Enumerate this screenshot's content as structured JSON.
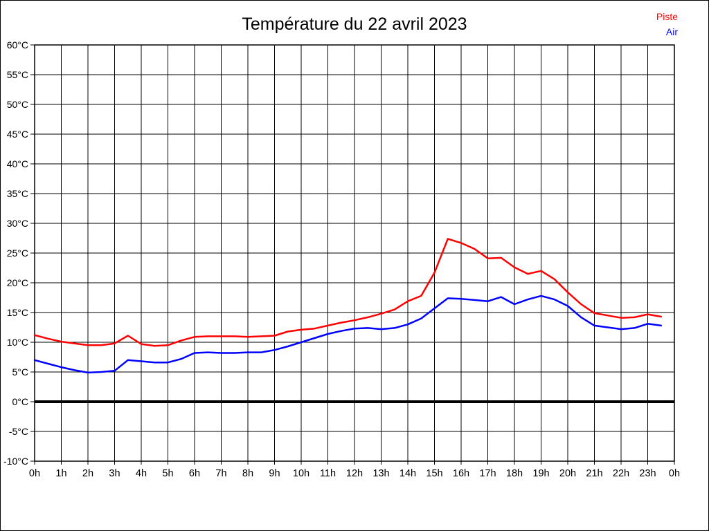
{
  "chart": {
    "title": "Température du 22 avril 2023"
  },
  "chart_data": {
    "type": "line",
    "title": "Température du 22 avril 2023",
    "xlabel": "",
    "ylabel": "",
    "xlim": [
      0,
      24
    ],
    "ylim": [
      -10,
      60
    ],
    "grid": true,
    "legend_position": "top-right",
    "zero_line_value": 0,
    "x_tick_labels": [
      "0h",
      "1h",
      "2h",
      "3h",
      "4h",
      "5h",
      "6h",
      "7h",
      "8h",
      "9h",
      "10h",
      "11h",
      "12h",
      "13h",
      "14h",
      "15h",
      "16h",
      "17h",
      "18h",
      "19h",
      "20h",
      "21h",
      "22h",
      "23h",
      "0h"
    ],
    "y_tick_values": [
      -10,
      -5,
      0,
      5,
      10,
      15,
      20,
      25,
      30,
      35,
      40,
      45,
      50,
      55,
      60
    ],
    "y_tick_labels": [
      "-10°C",
      "-5°C",
      "0°C",
      "5°C",
      "10°C",
      "15°C",
      "20°C",
      "25°C",
      "30°C",
      "35°C",
      "40°C",
      "45°C",
      "50°C",
      "55°C",
      "60°C"
    ],
    "x": [
      0,
      0.5,
      1,
      1.5,
      2,
      2.5,
      3,
      3.5,
      4,
      4.5,
      5,
      5.5,
      6,
      6.5,
      7,
      7.5,
      8,
      8.5,
      9,
      9.5,
      10,
      10.5,
      11,
      11.5,
      12,
      12.5,
      13,
      13.5,
      14,
      14.5,
      15,
      15.5,
      16,
      16.5,
      17,
      17.5,
      18,
      18.5,
      19,
      19.5,
      20,
      20.5,
      21,
      21.5,
      22,
      22.5,
      23,
      23.5
    ],
    "series": [
      {
        "name": "Piste",
        "color": "#ff0000",
        "values": [
          11.2,
          10.6,
          10.1,
          9.8,
          9.5,
          9.5,
          9.8,
          11.1,
          9.7,
          9.4,
          9.5,
          10.3,
          10.9,
          11.0,
          11.0,
          11.0,
          10.9,
          11.0,
          11.1,
          11.8,
          12.1,
          12.3,
          12.8,
          13.3,
          13.7,
          14.2,
          14.8,
          15.5,
          16.9,
          17.8,
          21.7,
          27.4,
          26.7,
          25.7,
          24.1,
          24.2,
          22.6,
          21.5,
          22.0,
          20.6,
          18.4,
          16.4,
          14.9,
          14.5,
          14.1,
          14.2,
          14.7,
          14.3
        ]
      },
      {
        "name": "Air",
        "color": "#0000ff",
        "values": [
          7.0,
          6.4,
          5.8,
          5.3,
          4.9,
          5.0,
          5.2,
          7.0,
          6.8,
          6.6,
          6.6,
          7.2,
          8.2,
          8.3,
          8.2,
          8.2,
          8.3,
          8.3,
          8.7,
          9.3,
          10.0,
          10.7,
          11.4,
          11.9,
          12.3,
          12.4,
          12.2,
          12.4,
          13.0,
          14.0,
          15.7,
          17.4,
          17.3,
          17.1,
          16.9,
          17.6,
          16.4,
          17.2,
          17.8,
          17.2,
          16.1,
          14.2,
          12.8,
          12.5,
          12.2,
          12.4,
          13.1,
          12.8
        ]
      }
    ]
  }
}
